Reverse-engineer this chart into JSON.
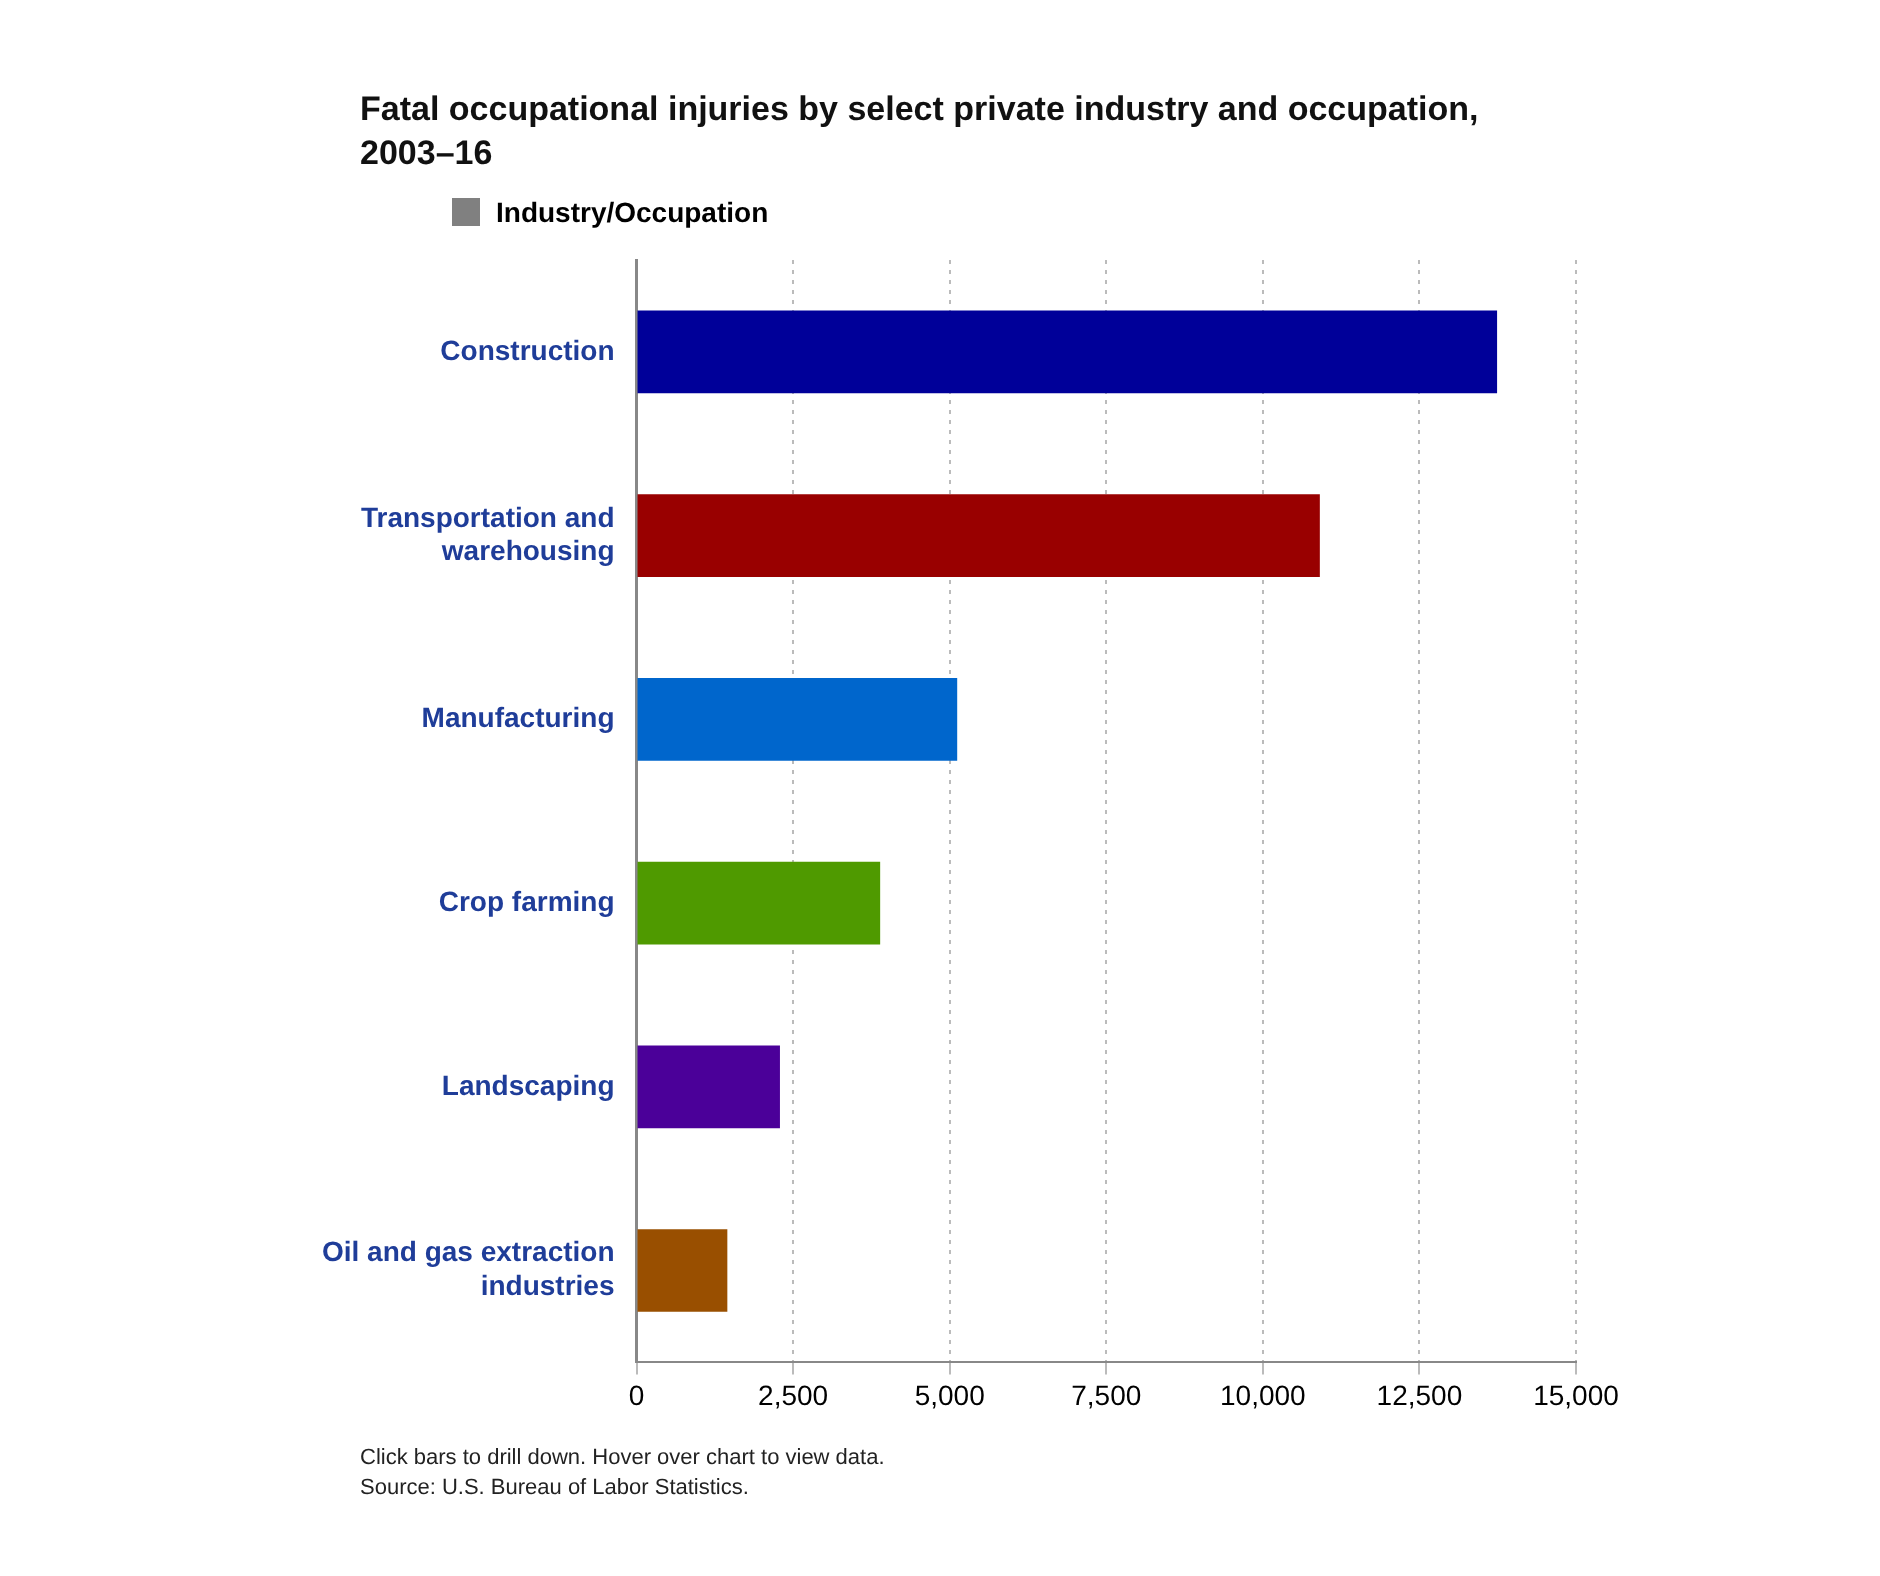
{
  "chart_data": {
    "type": "bar",
    "orientation": "horizontal",
    "title": "Fatal occupational injuries by select private industry and occupation, 2003–16",
    "categories": [
      "Construction",
      "Transportation and warehousing",
      "Manufacturing",
      "Crop farming",
      "Landscaping",
      "Oil and gas extraction industries"
    ],
    "series": [
      {
        "name": "Industry/Occupation",
        "color": "#808080",
        "colors": [
          "#000099",
          "#990000",
          "#0066cc",
          "#4f9a00",
          "#4b0099",
          "#994f00"
        ],
        "values": [
          13740,
          10910,
          5120,
          3890,
          2290,
          1450
        ]
      }
    ],
    "xlim": [
      0,
      15000
    ],
    "xticks": [
      0,
      {
        "value": 2500,
        "label": "2,500"
      },
      {
        "value": 5000,
        "label": "5,000"
      },
      {
        "value": 7500,
        "label": "7,500"
      },
      {
        "value": 10000,
        "label": "10,000"
      },
      {
        "value": 12500,
        "label": "12,500"
      },
      {
        "value": 15000,
        "label": "15,000"
      }
    ],
    "grid": "x",
    "legend": "top left",
    "annotations": [
      "Click bars to drill down. Hover over chart to view data.",
      "Source: U.S. Bureau of Labor Statistics."
    ]
  }
}
